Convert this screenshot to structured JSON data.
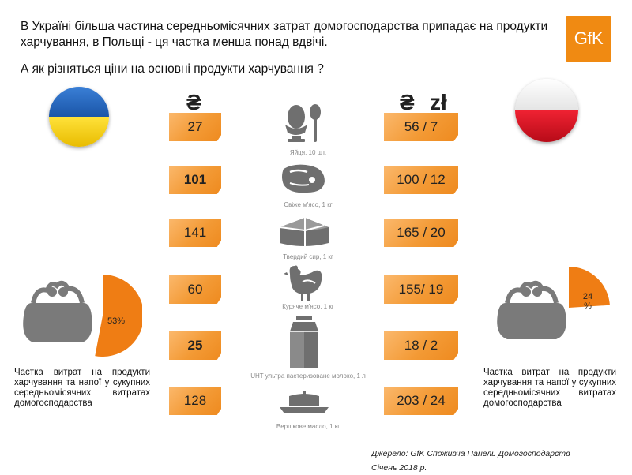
{
  "header": {
    "title": "В Україні більша частина середньомісячних затрат домогосподарства припадає на продукти харчування, в Польщі - ця частка менша понад вдвічі.",
    "question": "А як різняться ціни на основні продукти харчування ?",
    "logo": "GfK"
  },
  "currency": {
    "ua": "₴",
    "pl_uah": "₴",
    "pl_pln": "zł"
  },
  "products": [
    {
      "name": "Яйця, 10 шт.",
      "ua": "27",
      "pl": "56 / 7",
      "icon": "egg-spoon-icon"
    },
    {
      "name": "Свіже м'ясо, 1 кг",
      "ua": "101",
      "pl": "100 / 12",
      "icon": "steak-icon"
    },
    {
      "name": "Твердий сир, 1 кг",
      "ua": "141",
      "pl": "165 / 20",
      "icon": "cheese-icon"
    },
    {
      "name": "Куряче м'ясо, 1 кг",
      "ua": "60",
      "pl": "155/ 19",
      "icon": "chicken-icon"
    },
    {
      "name": "UHT ультра пастеризоване молоко, 1 л",
      "ua": "25",
      "pl": "18 / 2",
      "icon": "milk-carton-icon"
    },
    {
      "name": "Вершкове масло, 1 кг",
      "ua": "128",
      "pl": "203 / 24",
      "icon": "butter-dish-icon"
    }
  ],
  "ukraine": {
    "share_label": "53%",
    "share": 0.53,
    "note": "Частка витрат на продукти харчування та напої у сукупних середньомісячних витратах домогосподарства"
  },
  "poland": {
    "share_label": "24 %",
    "share": 0.24,
    "note": "Частка витрат на продукти харчування та напої у сукупних середньомісячних витратах домогосподарства"
  },
  "source": {
    "line1": "Джерело: GfK  Споживча Панель Домогосподарств",
    "line2": "Січень 2018 р."
  },
  "colors": {
    "accent": "#f08a12",
    "pie_orange": "#ef7d14",
    "icon_gray": "#6f6f6f",
    "ua_blue": "#1c5db4",
    "ua_yellow": "#f6d100",
    "pl_red": "#d9101f"
  }
}
